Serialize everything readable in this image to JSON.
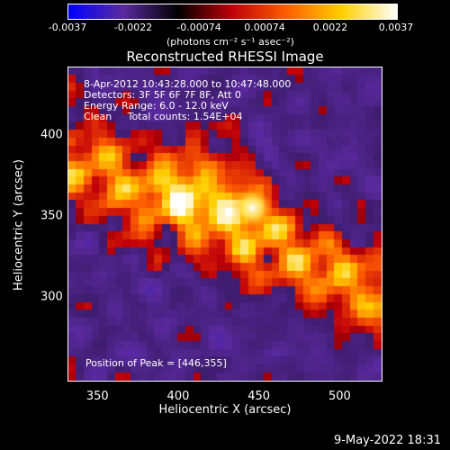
{
  "colorbar": {
    "ticks": [
      "-0.0037",
      "-0.0022",
      "-0.00074",
      "0.00074",
      "0.0022",
      "0.0037"
    ],
    "unit_label": "(photons cm⁻² s⁻¹ asec⁻²)",
    "colors": [
      "#0000ff",
      "#5a2aa0",
      "#000000",
      "#c0000a",
      "#ff6000",
      "#ffd000",
      "#ffffff"
    ]
  },
  "info": {
    "time_range": "8-Apr-2012 10:43:28.000 to 10:47:48.000",
    "detectors": "Detectors: 3F 5F 6F 7F 8F, Att 0",
    "energy": "Energy Range: 6.0 - 12.0 keV",
    "clean_counts": "Clean     Total counts: 1.54E+04",
    "peak": "Position of Peak = [446,355]"
  },
  "datestamp": "9-May-2022 18:31",
  "chart_data": {
    "type": "heatmap",
    "title": "Reconstructed RHESSI Image",
    "xlabel": "Heliocentric X (arcsec)",
    "ylabel": "Heliocentric Y (arcsec)",
    "xlim": [
      332,
      526
    ],
    "ylim": [
      248,
      442
    ],
    "xticks": [
      350,
      400,
      450,
      500
    ],
    "yticks": [
      300,
      350,
      400
    ],
    "zlim": [
      -0.0037,
      0.0037
    ],
    "peak": [
      446,
      355
    ],
    "peak_value": 0.0037,
    "grid": false
  }
}
